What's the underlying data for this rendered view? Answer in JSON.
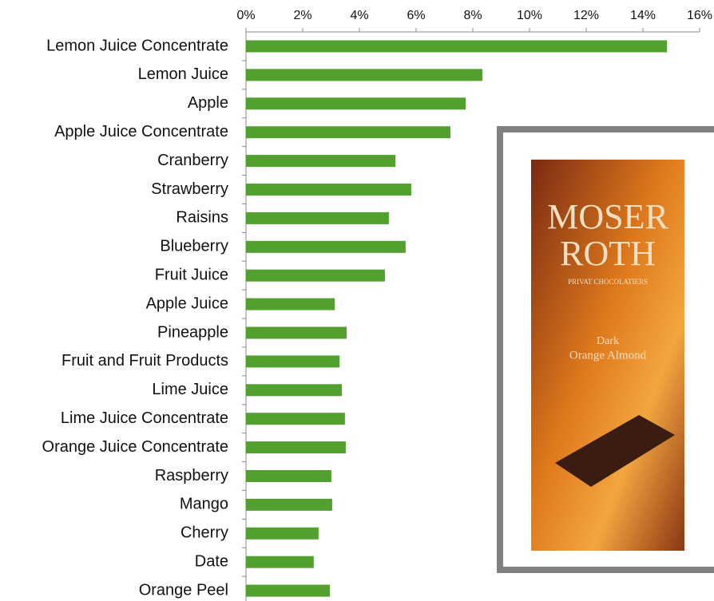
{
  "chart_data": {
    "type": "bar",
    "orientation": "horizontal",
    "categories": [
      "Lemon Juice Concentrate",
      "Lemon Juice",
      "Apple",
      "Apple Juice Concentrate",
      "Cranberry",
      "Strawberry",
      "Raisins",
      "Blueberry",
      "Fruit Juice",
      "Apple Juice",
      "Pineapple",
      "Fruit and Fruit Products",
      "Lime Juice",
      "Lime Juice Concentrate",
      "Orange Juice Concentrate",
      "Raspberry",
      "Mango",
      "Cherry",
      "Date",
      "Orange Peel"
    ],
    "values": [
      14.85,
      8.34,
      7.75,
      7.21,
      5.27,
      5.83,
      5.04,
      5.63,
      4.9,
      3.13,
      3.55,
      3.3,
      3.38,
      3.49,
      3.52,
      3.01,
      3.04,
      2.56,
      2.39,
      2.96
    ],
    "color": "#52a12f",
    "xlim": [
      0,
      16
    ],
    "xticks": [
      {
        "value": 0,
        "label": "0%"
      },
      {
        "value": 2,
        "label": "2%"
      },
      {
        "value": 4,
        "label": "4%"
      },
      {
        "value": 6,
        "label": "6%"
      },
      {
        "value": 8,
        "label": "8%"
      },
      {
        "value": 10,
        "label": "10%"
      },
      {
        "value": 12,
        "label": "12%"
      },
      {
        "value": 14,
        "label": "14%"
      },
      {
        "value": 16,
        "label": "16%"
      }
    ]
  },
  "inset": {
    "brand_line1": "MOSER",
    "brand_line2": "ROTH",
    "tagline": "PRIVAT CHOCOLATIERS",
    "flavor_line1": "Dark",
    "flavor_line2": "Orange Almond"
  }
}
